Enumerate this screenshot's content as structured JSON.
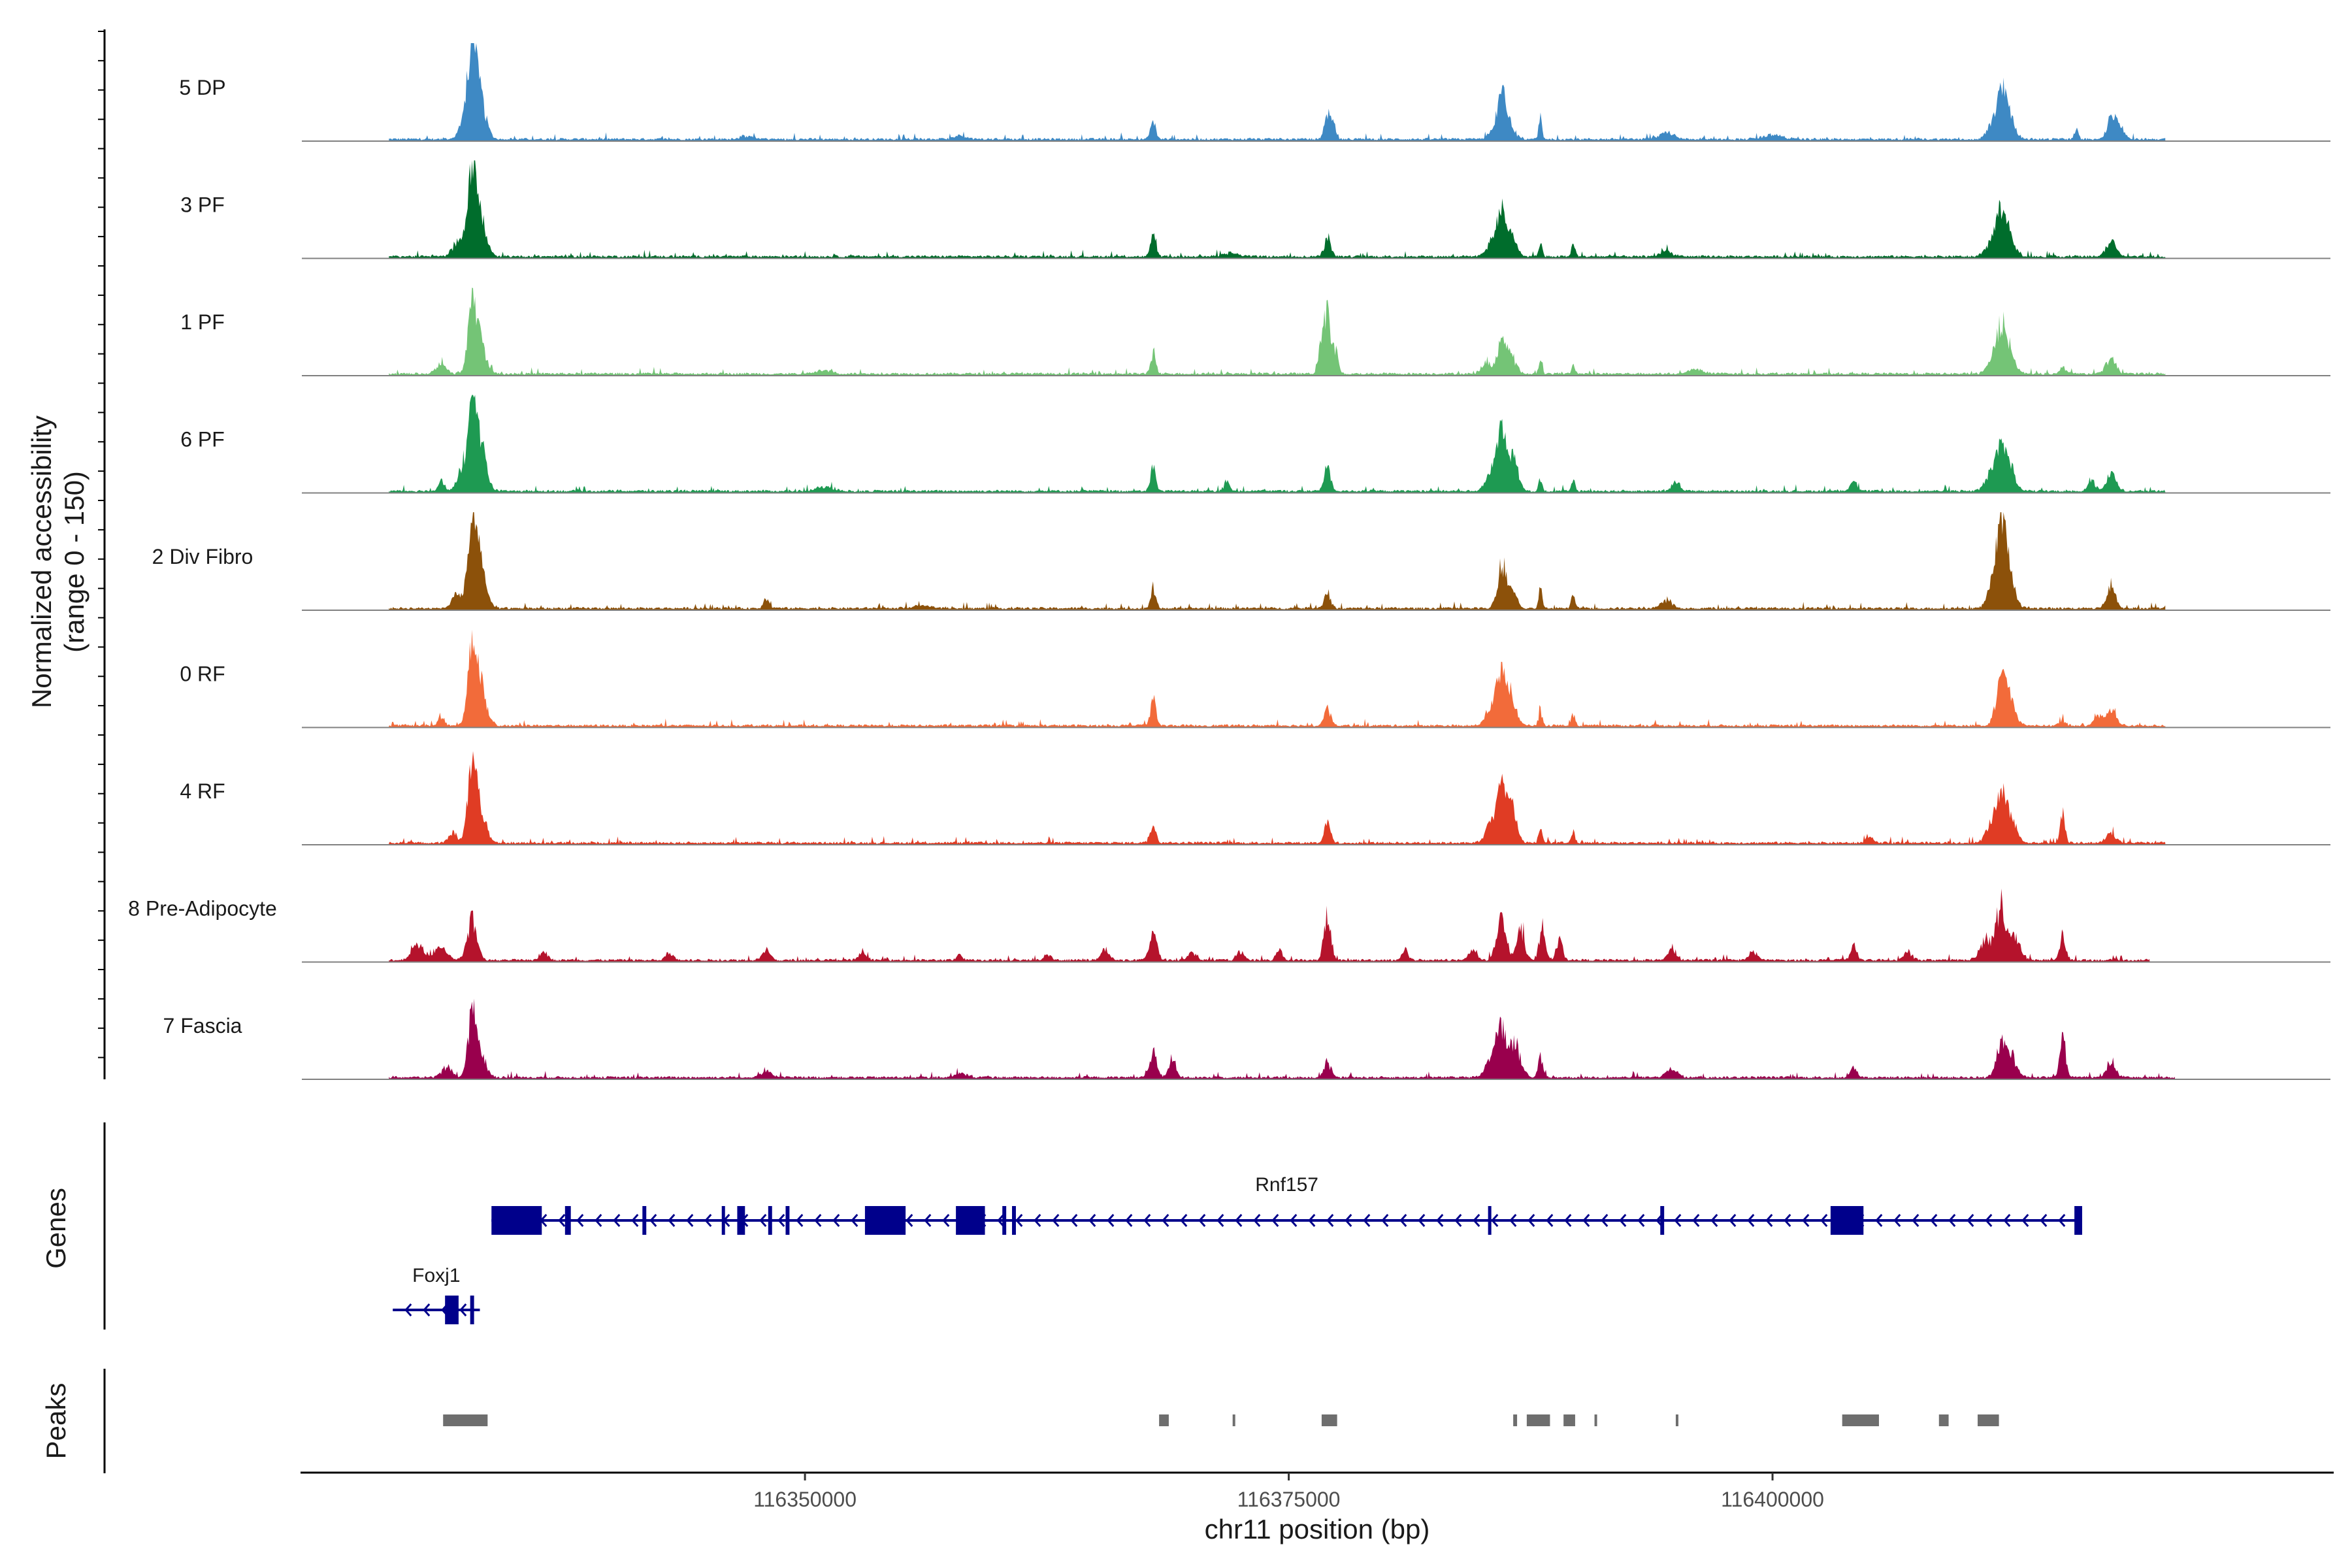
{
  "chart_data": {
    "type": "area",
    "title": "",
    "ylabel_line1": "Normalized accessibility",
    "ylabel_line2": "(range 0 - 150)",
    "xlabel": "chr11 position (bp)",
    "xlim": [
      116324000,
      116429000
    ],
    "ylim": [
      0,
      150
    ],
    "x_ticks": [
      {
        "value": 116350000,
        "label": "116350000"
      },
      {
        "value": 116375000,
        "label": "116375000"
      },
      {
        "value": 116400000,
        "label": "116400000"
      }
    ],
    "peak_positions": [
      116332800,
      116368000,
      116377000,
      116386000,
      116388500,
      116389700,
      116401200,
      116411800,
      116415000,
      116417500
    ],
    "tracks": [
      {
        "name": "5 DP",
        "color": "#3E89C4",
        "region": [
          116328500,
          116420300
        ],
        "peaks": [
          [
            116332800,
            150,
            250
          ],
          [
            116333200,
            70,
            300
          ],
          [
            116332300,
            22,
            250
          ],
          [
            116368000,
            35,
            130
          ],
          [
            116377000,
            38,
            160
          ],
          [
            116377300,
            25,
            140
          ],
          [
            116386000,
            76,
            200
          ],
          [
            116386400,
            30,
            250
          ],
          [
            116385500,
            14,
            200
          ],
          [
            116388000,
            44,
            80
          ],
          [
            116394500,
            12,
            400
          ],
          [
            116411800,
            70,
            250
          ],
          [
            116412200,
            42,
            300
          ],
          [
            116411300,
            22,
            250
          ],
          [
            116415700,
            22,
            100
          ],
          [
            116417500,
            34,
            230
          ],
          [
            116417900,
            26,
            250
          ],
          [
            116358000,
            6,
            300
          ],
          [
            116347000,
            5,
            400
          ],
          [
            116400000,
            8,
            500
          ]
        ]
      },
      {
        "name": "3 PF",
        "color": "#006D2C",
        "region": [
          116328500,
          116420300
        ],
        "peaks": [
          [
            116332800,
            140,
            220
          ],
          [
            116333200,
            70,
            300
          ],
          [
            116332100,
            28,
            300
          ],
          [
            116368000,
            38,
            130
          ],
          [
            116377000,
            32,
            180
          ],
          [
            116386000,
            72,
            230
          ],
          [
            116386500,
            38,
            250
          ],
          [
            116385500,
            24,
            300
          ],
          [
            116388000,
            28,
            90
          ],
          [
            116389700,
            26,
            90
          ],
          [
            116411800,
            76,
            250
          ],
          [
            116412200,
            34,
            300
          ],
          [
            116411300,
            22,
            300
          ],
          [
            116417500,
            28,
            250
          ],
          [
            116394500,
            10,
            300
          ],
          [
            116372000,
            6,
            400
          ]
        ]
      },
      {
        "name": "1 PF",
        "color": "#74C476",
        "region": [
          116328500,
          116420300
        ],
        "peaks": [
          [
            116332800,
            120,
            220
          ],
          [
            116333200,
            55,
            300
          ],
          [
            116331200,
            18,
            250
          ],
          [
            116368000,
            38,
            130
          ],
          [
            116377000,
            102,
            150
          ],
          [
            116376700,
            62,
            150
          ],
          [
            116377400,
            44,
            150
          ],
          [
            116386000,
            58,
            230
          ],
          [
            116386500,
            32,
            250
          ],
          [
            116385200,
            20,
            250
          ],
          [
            116388000,
            20,
            90
          ],
          [
            116389700,
            16,
            90
          ],
          [
            116411800,
            80,
            250
          ],
          [
            116412200,
            36,
            300
          ],
          [
            116411300,
            20,
            250
          ],
          [
            116417500,
            28,
            250
          ],
          [
            116415000,
            12,
            150
          ],
          [
            116351000,
            6,
            400
          ],
          [
            116396000,
            8,
            400
          ]
        ]
      },
      {
        "name": "6 PF",
        "color": "#1E9A52",
        "region": [
          116328500,
          116420300
        ],
        "peaks": [
          [
            116332800,
            125,
            220
          ],
          [
            116333200,
            88,
            300
          ],
          [
            116332300,
            40,
            250
          ],
          [
            116331200,
            22,
            150
          ],
          [
            116368000,
            45,
            130
          ],
          [
            116371800,
            18,
            150
          ],
          [
            116377000,
            48,
            160
          ],
          [
            116386000,
            105,
            230
          ],
          [
            116386600,
            60,
            250
          ],
          [
            116385500,
            36,
            300
          ],
          [
            116388000,
            22,
            90
          ],
          [
            116389700,
            22,
            90
          ],
          [
            116411800,
            72,
            250
          ],
          [
            116412200,
            50,
            300
          ],
          [
            116411300,
            32,
            300
          ],
          [
            116417500,
            30,
            250
          ],
          [
            116416500,
            18,
            200
          ],
          [
            116404200,
            18,
            150
          ],
          [
            116395000,
            18,
            200
          ],
          [
            116351000,
            8,
            400
          ]
        ]
      },
      {
        "name": "2 Div Fibro",
        "color": "#8C510A",
        "region": [
          116328500,
          116420300
        ],
        "peaks": [
          [
            116332800,
            150,
            220
          ],
          [
            116333200,
            76,
            300
          ],
          [
            116332000,
            26,
            250
          ],
          [
            116348000,
            18,
            130
          ],
          [
            116368000,
            38,
            130
          ],
          [
            116377000,
            32,
            160
          ],
          [
            116386000,
            72,
            230
          ],
          [
            116386500,
            34,
            250
          ],
          [
            116388000,
            38,
            90
          ],
          [
            116389700,
            26,
            90
          ],
          [
            116411800,
            142,
            250
          ],
          [
            116412200,
            62,
            300
          ],
          [
            116411300,
            36,
            250
          ],
          [
            116417500,
            40,
            230
          ],
          [
            116394500,
            14,
            300
          ],
          [
            116356000,
            6,
            400
          ]
        ]
      },
      {
        "name": "0 RF",
        "color": "#F26B3A",
        "region": [
          116328500,
          116420300
        ],
        "peaks": [
          [
            116332800,
            135,
            220
          ],
          [
            116333200,
            70,
            300
          ],
          [
            116331200,
            18,
            150
          ],
          [
            116368000,
            54,
            130
          ],
          [
            116377000,
            30,
            180
          ],
          [
            116386000,
            98,
            230
          ],
          [
            116386500,
            56,
            250
          ],
          [
            116385500,
            30,
            300
          ],
          [
            116388000,
            28,
            90
          ],
          [
            116389700,
            22,
            90
          ],
          [
            116411800,
            78,
            250
          ],
          [
            116412200,
            48,
            300
          ],
          [
            116417500,
            28,
            250
          ],
          [
            116416800,
            20,
            200
          ],
          [
            116415000,
            10,
            150
          ]
        ]
      },
      {
        "name": "4 RF",
        "color": "#E03C24",
        "region": [
          116328500,
          116420300
        ],
        "peaks": [
          [
            116332800,
            128,
            220
          ],
          [
            116333200,
            60,
            300
          ],
          [
            116331800,
            20,
            200
          ],
          [
            116368000,
            44,
            130
          ],
          [
            116377000,
            36,
            160
          ],
          [
            116386000,
            90,
            230
          ],
          [
            116386500,
            64,
            250
          ],
          [
            116385500,
            36,
            300
          ],
          [
            116388000,
            30,
            90
          ],
          [
            116389700,
            20,
            90
          ],
          [
            116411800,
            76,
            250
          ],
          [
            116412300,
            46,
            300
          ],
          [
            116411300,
            30,
            300
          ],
          [
            116415000,
            54,
            120
          ],
          [
            116417500,
            18,
            250
          ],
          [
            116405000,
            10,
            200
          ]
        ]
      },
      {
        "name": "8 Pre-Adipocyte",
        "color": "#B5132C",
        "region": [
          116328500,
          116419500
        ],
        "peaks": [
          [
            116332800,
            72,
            250
          ],
          [
            116331200,
            24,
            300
          ],
          [
            116330000,
            28,
            300
          ],
          [
            116336500,
            16,
            200
          ],
          [
            116343000,
            14,
            200
          ],
          [
            116348000,
            20,
            200
          ],
          [
            116358000,
            10,
            150
          ],
          [
            116362500,
            10,
            150
          ],
          [
            116365500,
            20,
            200
          ],
          [
            116368000,
            60,
            180
          ],
          [
            116370000,
            16,
            200
          ],
          [
            116372500,
            16,
            200
          ],
          [
            116374500,
            20,
            150
          ],
          [
            116377000,
            82,
            180
          ],
          [
            116381000,
            20,
            150
          ],
          [
            116384500,
            20,
            200
          ],
          [
            116386000,
            70,
            250
          ],
          [
            116387000,
            55,
            200
          ],
          [
            116388100,
            60,
            150
          ],
          [
            116389000,
            45,
            150
          ],
          [
            116394800,
            22,
            200
          ],
          [
            116399000,
            16,
            200
          ],
          [
            116404200,
            28,
            150
          ],
          [
            116407000,
            16,
            200
          ],
          [
            116411800,
            100,
            250
          ],
          [
            116411000,
            36,
            300
          ],
          [
            116412500,
            40,
            300
          ],
          [
            116415000,
            46,
            150
          ],
          [
            116353000,
            12,
            200
          ]
        ]
      },
      {
        "name": "7 Fascia",
        "color": "#99004D",
        "region": [
          116328500,
          116420800
        ],
        "peaks": [
          [
            116332800,
            100,
            220
          ],
          [
            116333200,
            44,
            300
          ],
          [
            116331500,
            18,
            250
          ],
          [
            116368000,
            48,
            180
          ],
          [
            116369000,
            36,
            180
          ],
          [
            116377000,
            24,
            200
          ],
          [
            116386000,
            80,
            250
          ],
          [
            116386700,
            60,
            300
          ],
          [
            116385500,
            36,
            300
          ],
          [
            116388000,
            36,
            120
          ],
          [
            116404200,
            22,
            150
          ],
          [
            116411800,
            56,
            250
          ],
          [
            116412300,
            40,
            300
          ],
          [
            116415000,
            72,
            150
          ],
          [
            116417500,
            24,
            250
          ],
          [
            116394800,
            14,
            300
          ],
          [
            116348000,
            10,
            300
          ],
          [
            116358000,
            8,
            300
          ]
        ]
      }
    ],
    "genes": [
      {
        "name": "Rnf157",
        "start": 116333800,
        "end": 116416000,
        "strand": "-",
        "exons": [
          [
            116333800,
            116336400
          ],
          [
            116337600,
            116337900
          ],
          [
            116341600,
            116341800
          ],
          [
            116345700,
            116345800
          ],
          [
            116346500,
            116346900
          ],
          [
            116348100,
            116348300
          ],
          [
            116349000,
            116349200
          ],
          [
            116353100,
            116355200
          ],
          [
            116357800,
            116359300
          ],
          [
            116360200,
            116360400
          ],
          [
            116360700,
            116360900
          ],
          [
            116385300,
            116385400
          ],
          [
            116394200,
            116394400
          ],
          [
            116403000,
            116404700
          ],
          [
            116415600,
            116416000
          ]
        ]
      },
      {
        "name": "Foxj1",
        "start": 116328700,
        "end": 116333200,
        "strand": "-",
        "exons": [
          [
            116331400,
            116332100
          ],
          [
            116332700,
            116332900
          ]
        ]
      }
    ],
    "peaks": [
      [
        116331300,
        116333600
      ],
      [
        116368300,
        116368800
      ],
      [
        116372100,
        116372200
      ],
      [
        116376700,
        116377500
      ],
      [
        116386600,
        116386800
      ],
      [
        116387300,
        116388500
      ],
      [
        116389200,
        116389800
      ],
      [
        116390800,
        116390900
      ],
      [
        116395000,
        116395100
      ],
      [
        116403600,
        116405500
      ],
      [
        116408600,
        116409100
      ],
      [
        116410600,
        116411700
      ]
    ]
  },
  "colors": {
    "baseline": "#808080",
    "axis": "#000000",
    "gene": "#00008B",
    "peak": "#6E6E6E"
  },
  "panels": {
    "genes_title": "Genes",
    "peaks_title": "Peaks"
  }
}
